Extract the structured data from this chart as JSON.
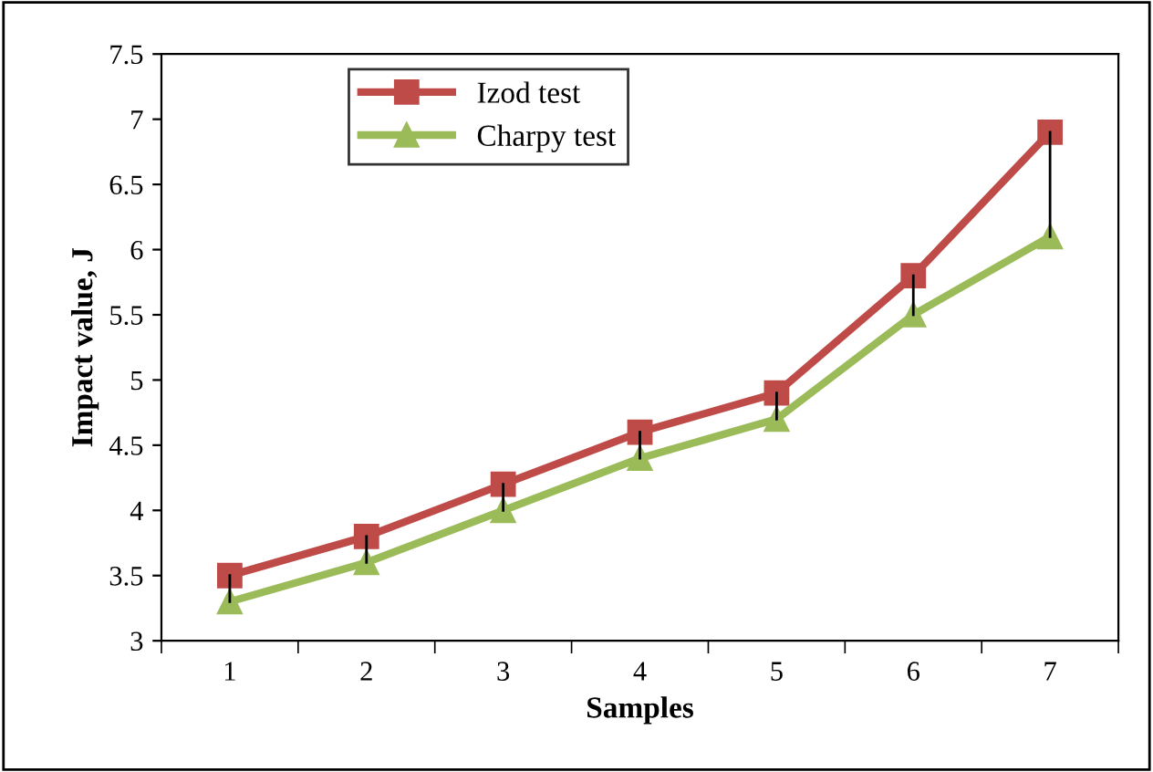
{
  "chart_data": {
    "type": "line",
    "xlabel": "Samples",
    "ylabel": "Impact value, J",
    "categories": [
      "1",
      "2",
      "3",
      "4",
      "5",
      "6",
      "7"
    ],
    "series": [
      {
        "name": "Izod test",
        "color": "#be4b48",
        "marker": "square",
        "values": [
          3.5,
          3.8,
          4.2,
          4.6,
          4.9,
          5.8,
          6.9
        ],
        "errors": [
          [
            3.3,
            3.5
          ],
          [
            3.6,
            3.8
          ],
          [
            4.0,
            4.2
          ],
          [
            4.4,
            4.6
          ],
          [
            4.7,
            4.9
          ],
          [
            5.5,
            5.8
          ],
          [
            6.1,
            6.9
          ]
        ]
      },
      {
        "name": "Charpy test",
        "color": "#9bbb59",
        "marker": "triangle",
        "values": [
          3.3,
          3.6,
          4.0,
          4.4,
          4.7,
          5.5,
          6.1
        ]
      }
    ],
    "ylim": [
      3,
      7.5
    ],
    "yticks": [
      3,
      3.5,
      4,
      4.5,
      5,
      5.5,
      6,
      6.5,
      7,
      7.5
    ],
    "grid": false,
    "legend": "top left",
    "line_style": "solid"
  }
}
